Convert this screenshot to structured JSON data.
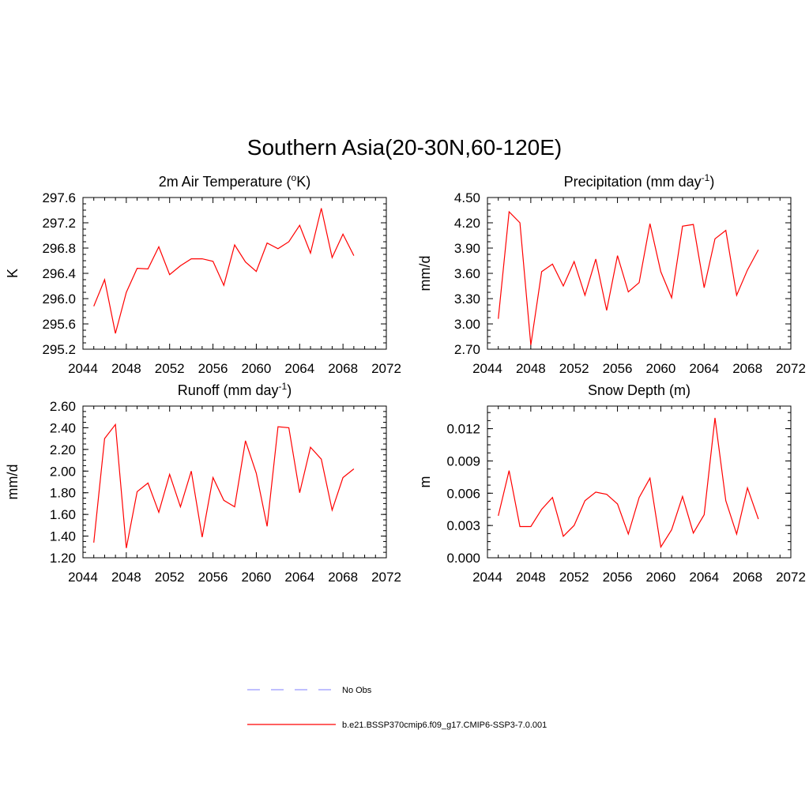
{
  "figure": {
    "title": "Southern Asia(20-30N,60-120E)"
  },
  "chart_data": [
    {
      "type": "line",
      "title": "2m Air Temperature (oK)",
      "title_parts": {
        "before": "2m Air Temperature (",
        "sup": "o",
        "after": "K)"
      },
      "xlabel": "",
      "ylabel": "K",
      "xlim": [
        2044,
        2072
      ],
      "ylim": [
        295.2,
        297.6
      ],
      "xticks": [
        "2044",
        "2048",
        "2052",
        "2056",
        "2060",
        "2064",
        "2068",
        "2072"
      ],
      "yticks": [
        "295.2",
        "295.6",
        "296.0",
        "296.4",
        "296.8",
        "297.2",
        "297.6"
      ],
      "x": [
        2045,
        2046,
        2047,
        2048,
        2049,
        2050,
        2051,
        2052,
        2053,
        2054,
        2055,
        2056,
        2057,
        2058,
        2059,
        2060,
        2061,
        2062,
        2063,
        2064,
        2065,
        2066,
        2067,
        2068,
        2069
      ],
      "series": [
        {
          "color": "#ff0000",
          "values": [
            295.88,
            296.3,
            295.45,
            296.1,
            296.48,
            296.47,
            296.82,
            296.38,
            296.52,
            296.63,
            296.63,
            296.59,
            296.21,
            296.85,
            296.58,
            296.43,
            296.88,
            296.79,
            296.9,
            297.16,
            296.72,
            297.43,
            296.65,
            297.02,
            296.68
          ]
        }
      ]
    },
    {
      "type": "line",
      "title": "Precipitation (mm day-1)",
      "title_parts": {
        "before": "Precipitation (mm day",
        "sup": "-1",
        "after": ")"
      },
      "xlabel": "",
      "ylabel": "mm/d",
      "xlim": [
        2044,
        2072
      ],
      "ylim": [
        2.7,
        4.5
      ],
      "xticks": [
        "2044",
        "2048",
        "2052",
        "2056",
        "2060",
        "2064",
        "2068",
        "2072"
      ],
      "yticks": [
        "2.70",
        "3.00",
        "3.30",
        "3.60",
        "3.90",
        "4.20",
        "4.50"
      ],
      "x": [
        2045,
        2046,
        2047,
        2048,
        2049,
        2050,
        2051,
        2052,
        2053,
        2054,
        2055,
        2056,
        2057,
        2058,
        2059,
        2060,
        2061,
        2062,
        2063,
        2064,
        2065,
        2066,
        2067,
        2068,
        2069
      ],
      "series": [
        {
          "color": "#ff0000",
          "values": [
            3.06,
            4.33,
            4.2,
            2.75,
            3.62,
            3.71,
            3.45,
            3.74,
            3.34,
            3.77,
            3.16,
            3.81,
            3.38,
            3.49,
            4.19,
            3.62,
            3.31,
            4.16,
            4.18,
            3.43,
            4.01,
            4.11,
            3.34,
            3.64,
            3.88
          ]
        }
      ]
    },
    {
      "type": "line",
      "title": "Runoff (mm day-1)",
      "title_parts": {
        "before": "Runoff (mm day",
        "sup": "-1",
        "after": ")"
      },
      "xlabel": "",
      "ylabel": "mm/d",
      "xlim": [
        2044,
        2072
      ],
      "ylim": [
        1.2,
        2.6
      ],
      "xticks": [
        "2044",
        "2048",
        "2052",
        "2056",
        "2060",
        "2064",
        "2068",
        "2072"
      ],
      "yticks": [
        "1.20",
        "1.40",
        "1.60",
        "1.80",
        "2.00",
        "2.20",
        "2.40",
        "2.60"
      ],
      "x": [
        2045,
        2046,
        2047,
        2048,
        2049,
        2050,
        2051,
        2052,
        2053,
        2054,
        2055,
        2056,
        2057,
        2058,
        2059,
        2060,
        2061,
        2062,
        2063,
        2064,
        2065,
        2066,
        2067,
        2068,
        2069
      ],
      "series": [
        {
          "color": "#ff0000",
          "values": [
            1.34,
            2.3,
            2.43,
            1.29,
            1.81,
            1.89,
            1.62,
            1.97,
            1.67,
            2.0,
            1.39,
            1.94,
            1.73,
            1.67,
            2.28,
            1.98,
            1.49,
            2.41,
            2.4,
            1.8,
            2.22,
            2.11,
            1.64,
            1.94,
            2.02
          ]
        }
      ]
    },
    {
      "type": "line",
      "title": "Snow Depth (m)",
      "title_parts": {
        "before": "Snow Depth (m)",
        "sup": "",
        "after": ""
      },
      "xlabel": "",
      "ylabel": "m",
      "xlim": [
        2044,
        2072
      ],
      "ylim": [
        0,
        0.0141
      ],
      "xticks": [
        "2044",
        "2048",
        "2052",
        "2056",
        "2060",
        "2064",
        "2068",
        "2072"
      ],
      "ytick_values": [
        0,
        0.003,
        0.006,
        0.009,
        0.012
      ],
      "yticks": [
        "0.000",
        "0.003",
        "0.006",
        "0.009",
        "0.012"
      ],
      "x": [
        2045,
        2046,
        2047,
        2048,
        2049,
        2050,
        2051,
        2052,
        2053,
        2054,
        2055,
        2056,
        2057,
        2058,
        2059,
        2060,
        2061,
        2062,
        2063,
        2064,
        2065,
        2066,
        2067,
        2068,
        2069
      ],
      "series": [
        {
          "color": "#ff0000",
          "values": [
            0.0039,
            0.0081,
            0.0029,
            0.0029,
            0.0045,
            0.0056,
            0.002,
            0.003,
            0.0053,
            0.0061,
            0.0059,
            0.005,
            0.0022,
            0.0056,
            0.0074,
            0.001,
            0.0026,
            0.0057,
            0.0023,
            0.004,
            0.013,
            0.0053,
            0.0022,
            0.0065,
            0.0036
          ]
        }
      ]
    }
  ],
  "legend": {
    "placement": "bottom-center",
    "items": [
      {
        "label": "No Obs",
        "color": "#9999ff",
        "style": "dashed"
      },
      {
        "label": "b.e21.BSSP370cmip6.f09_g17.CMIP6-SSP3-7.0.001",
        "color": "#ff0000",
        "style": "solid"
      }
    ]
  }
}
